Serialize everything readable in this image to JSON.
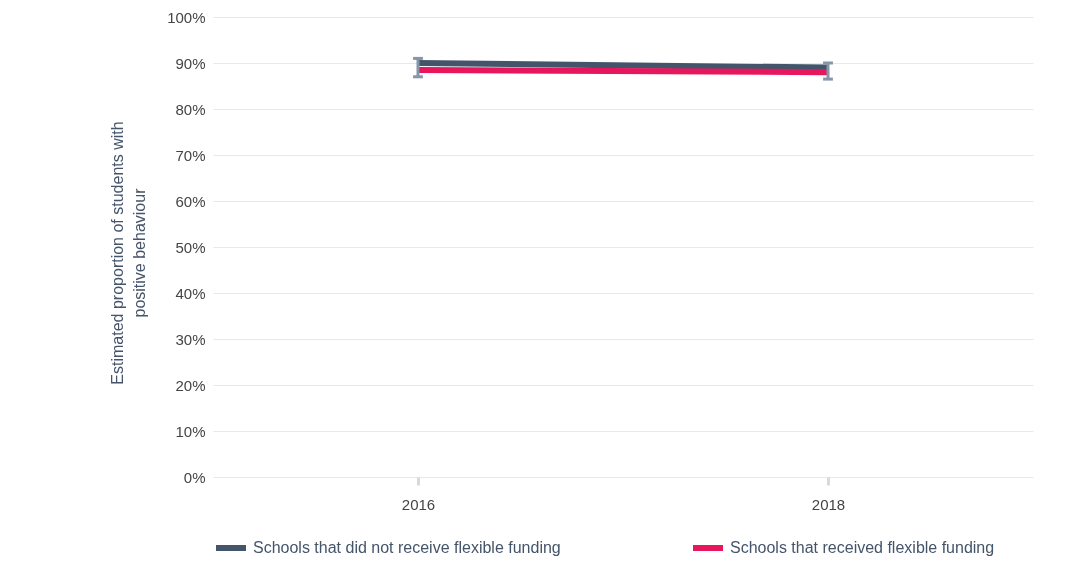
{
  "chart_data": {
    "type": "line",
    "ylabel": "Estimated proportion of students with positive behaviour",
    "categories": [
      "2016",
      "2018"
    ],
    "series": [
      {
        "name": "Schools that did not receive flexible funding",
        "color": "#44546a",
        "values": [
          90,
          89
        ],
        "errors": [
          [
            87,
            91
          ],
          [
            86.5,
            90
          ]
        ]
      },
      {
        "name": "Schools that received flexible funding",
        "color": "#e8175d",
        "values": [
          88.5,
          88
        ]
      }
    ],
    "ylim": [
      0,
      100
    ],
    "yticks": [
      {
        "value": 0,
        "label": "0%"
      },
      {
        "value": 10,
        "label": "10%"
      },
      {
        "value": 20,
        "label": "20%"
      },
      {
        "value": 30,
        "label": "30%"
      },
      {
        "value": 40,
        "label": "40%"
      },
      {
        "value": 50,
        "label": "50%"
      },
      {
        "value": 60,
        "label": "60%"
      },
      {
        "value": 70,
        "label": "70%"
      },
      {
        "value": 80,
        "label": "80%"
      },
      {
        "value": 90,
        "label": "90%"
      },
      {
        "value": 100,
        "label": "100%"
      }
    ],
    "grid": "y",
    "legend": "bottom",
    "marker": "none",
    "line_style": "solid"
  }
}
